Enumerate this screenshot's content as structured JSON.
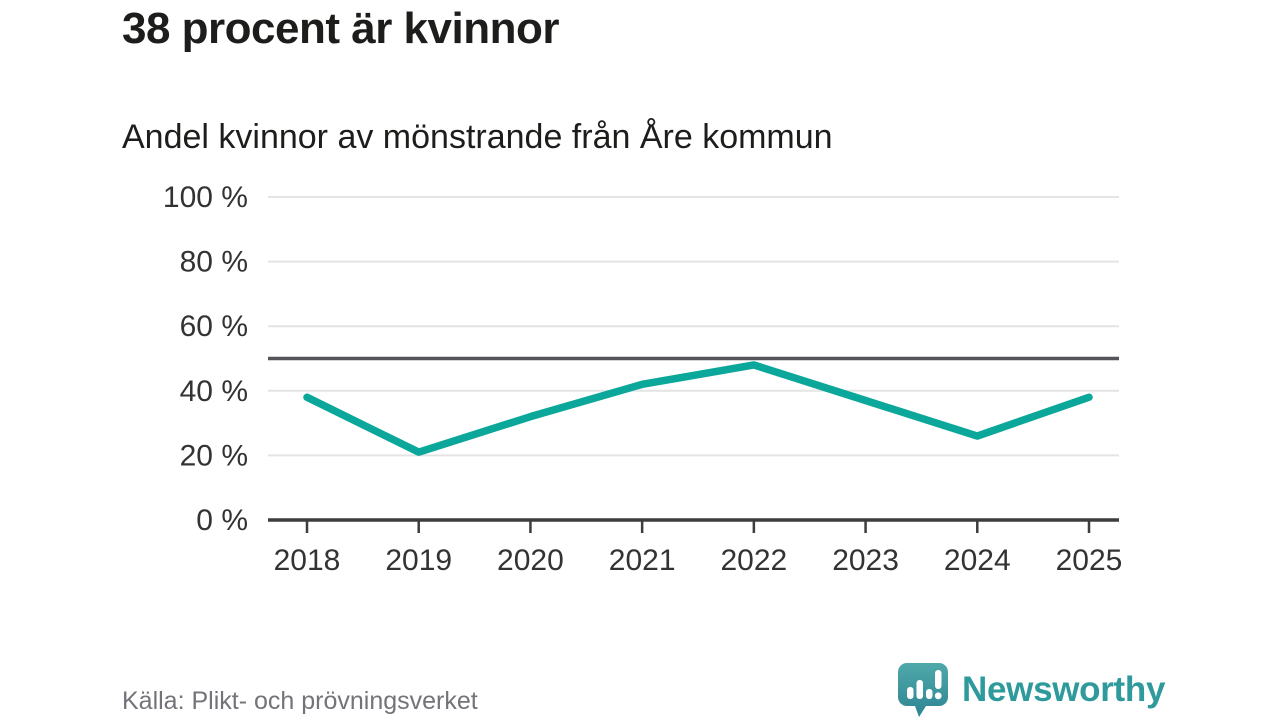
{
  "header": {
    "title": "38 procent är kvinnor",
    "subtitle": "Andel kvinnor av mönstrande från Åre kommun"
  },
  "chart_data": {
    "type": "line",
    "title": "Andel kvinnor av mönstrande från Åre kommun",
    "x": [
      2018,
      2019,
      2020,
      2021,
      2022,
      2023,
      2024,
      2025
    ],
    "xtick_labels": [
      "2018",
      "2019",
      "2020",
      "2021",
      "2022",
      "2023",
      "2024",
      "2025"
    ],
    "series": [
      {
        "name": "Andel kvinnor av mönstrande",
        "values": [
          38,
          21,
          32,
          42,
          48,
          37,
          26,
          38
        ],
        "color": "#0aa79a"
      }
    ],
    "unit": "%",
    "ylim": [
      0,
      100
    ],
    "yticks": [
      0,
      20,
      40,
      60,
      80,
      100
    ],
    "ytick_labels": [
      "0 %",
      "20 %",
      "40 %",
      "60 %",
      "80 %",
      "100 %"
    ],
    "reference_line": {
      "value": 50,
      "color": "#54555a"
    },
    "grid": true,
    "grid_color": "#e4e4e4",
    "axis_color": "#3d3d3d",
    "tick_label_color": "#333333",
    "legend_position": "none"
  },
  "footer": {
    "source": "Källa: Plikt- och prövningsverket",
    "logo_text": "Newsworthy",
    "logo_color": "#2f9a9c",
    "logo_icon": "newsworthy-speech-bubble-chart-icon"
  }
}
